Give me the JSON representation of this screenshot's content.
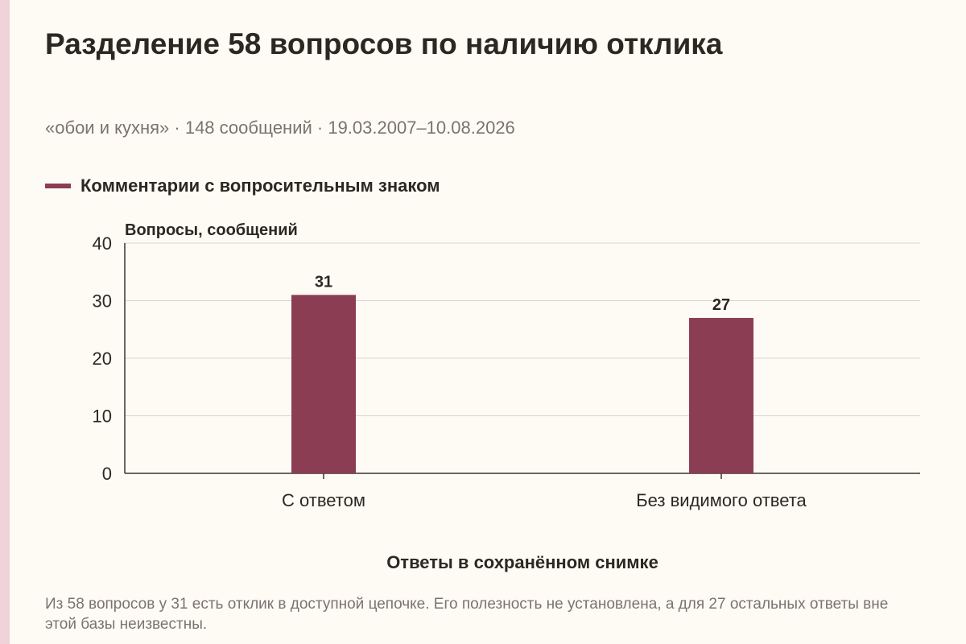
{
  "title": "Разделение 58 вопросов по наличию отклика",
  "subtitle": "«обои и кухня» · 148 сообщений · 19.03.2007–10.08.2026",
  "note": "Из 58 вопросов у 31 есть отклик в доступной цепочке. Его полезность не установлена, а для 27 остальных ответы вне этой базы неизвестны.",
  "colors": {
    "bar": "#8b3e53",
    "grid": "#d8d5cd",
    "axis": "#3a3632",
    "background": "#fdfbf4"
  },
  "chart_data": {
    "type": "bar",
    "title": "Разделение 58 вопросов по наличию отклика",
    "xlabel": "Ответы в сохранённом снимке",
    "ylabel": "Вопросы, сообщений",
    "categories": [
      "С ответом",
      "Без видимого ответа"
    ],
    "series": [
      {
        "name": "Комментарии с вопросительным знаком",
        "values": [
          31,
          27
        ]
      }
    ],
    "ylim": [
      0,
      40
    ],
    "yticks": [
      0,
      10,
      20,
      30,
      40
    ],
    "grid": true,
    "legend": "top-left",
    "data_labels": [
      "31",
      "27"
    ]
  }
}
